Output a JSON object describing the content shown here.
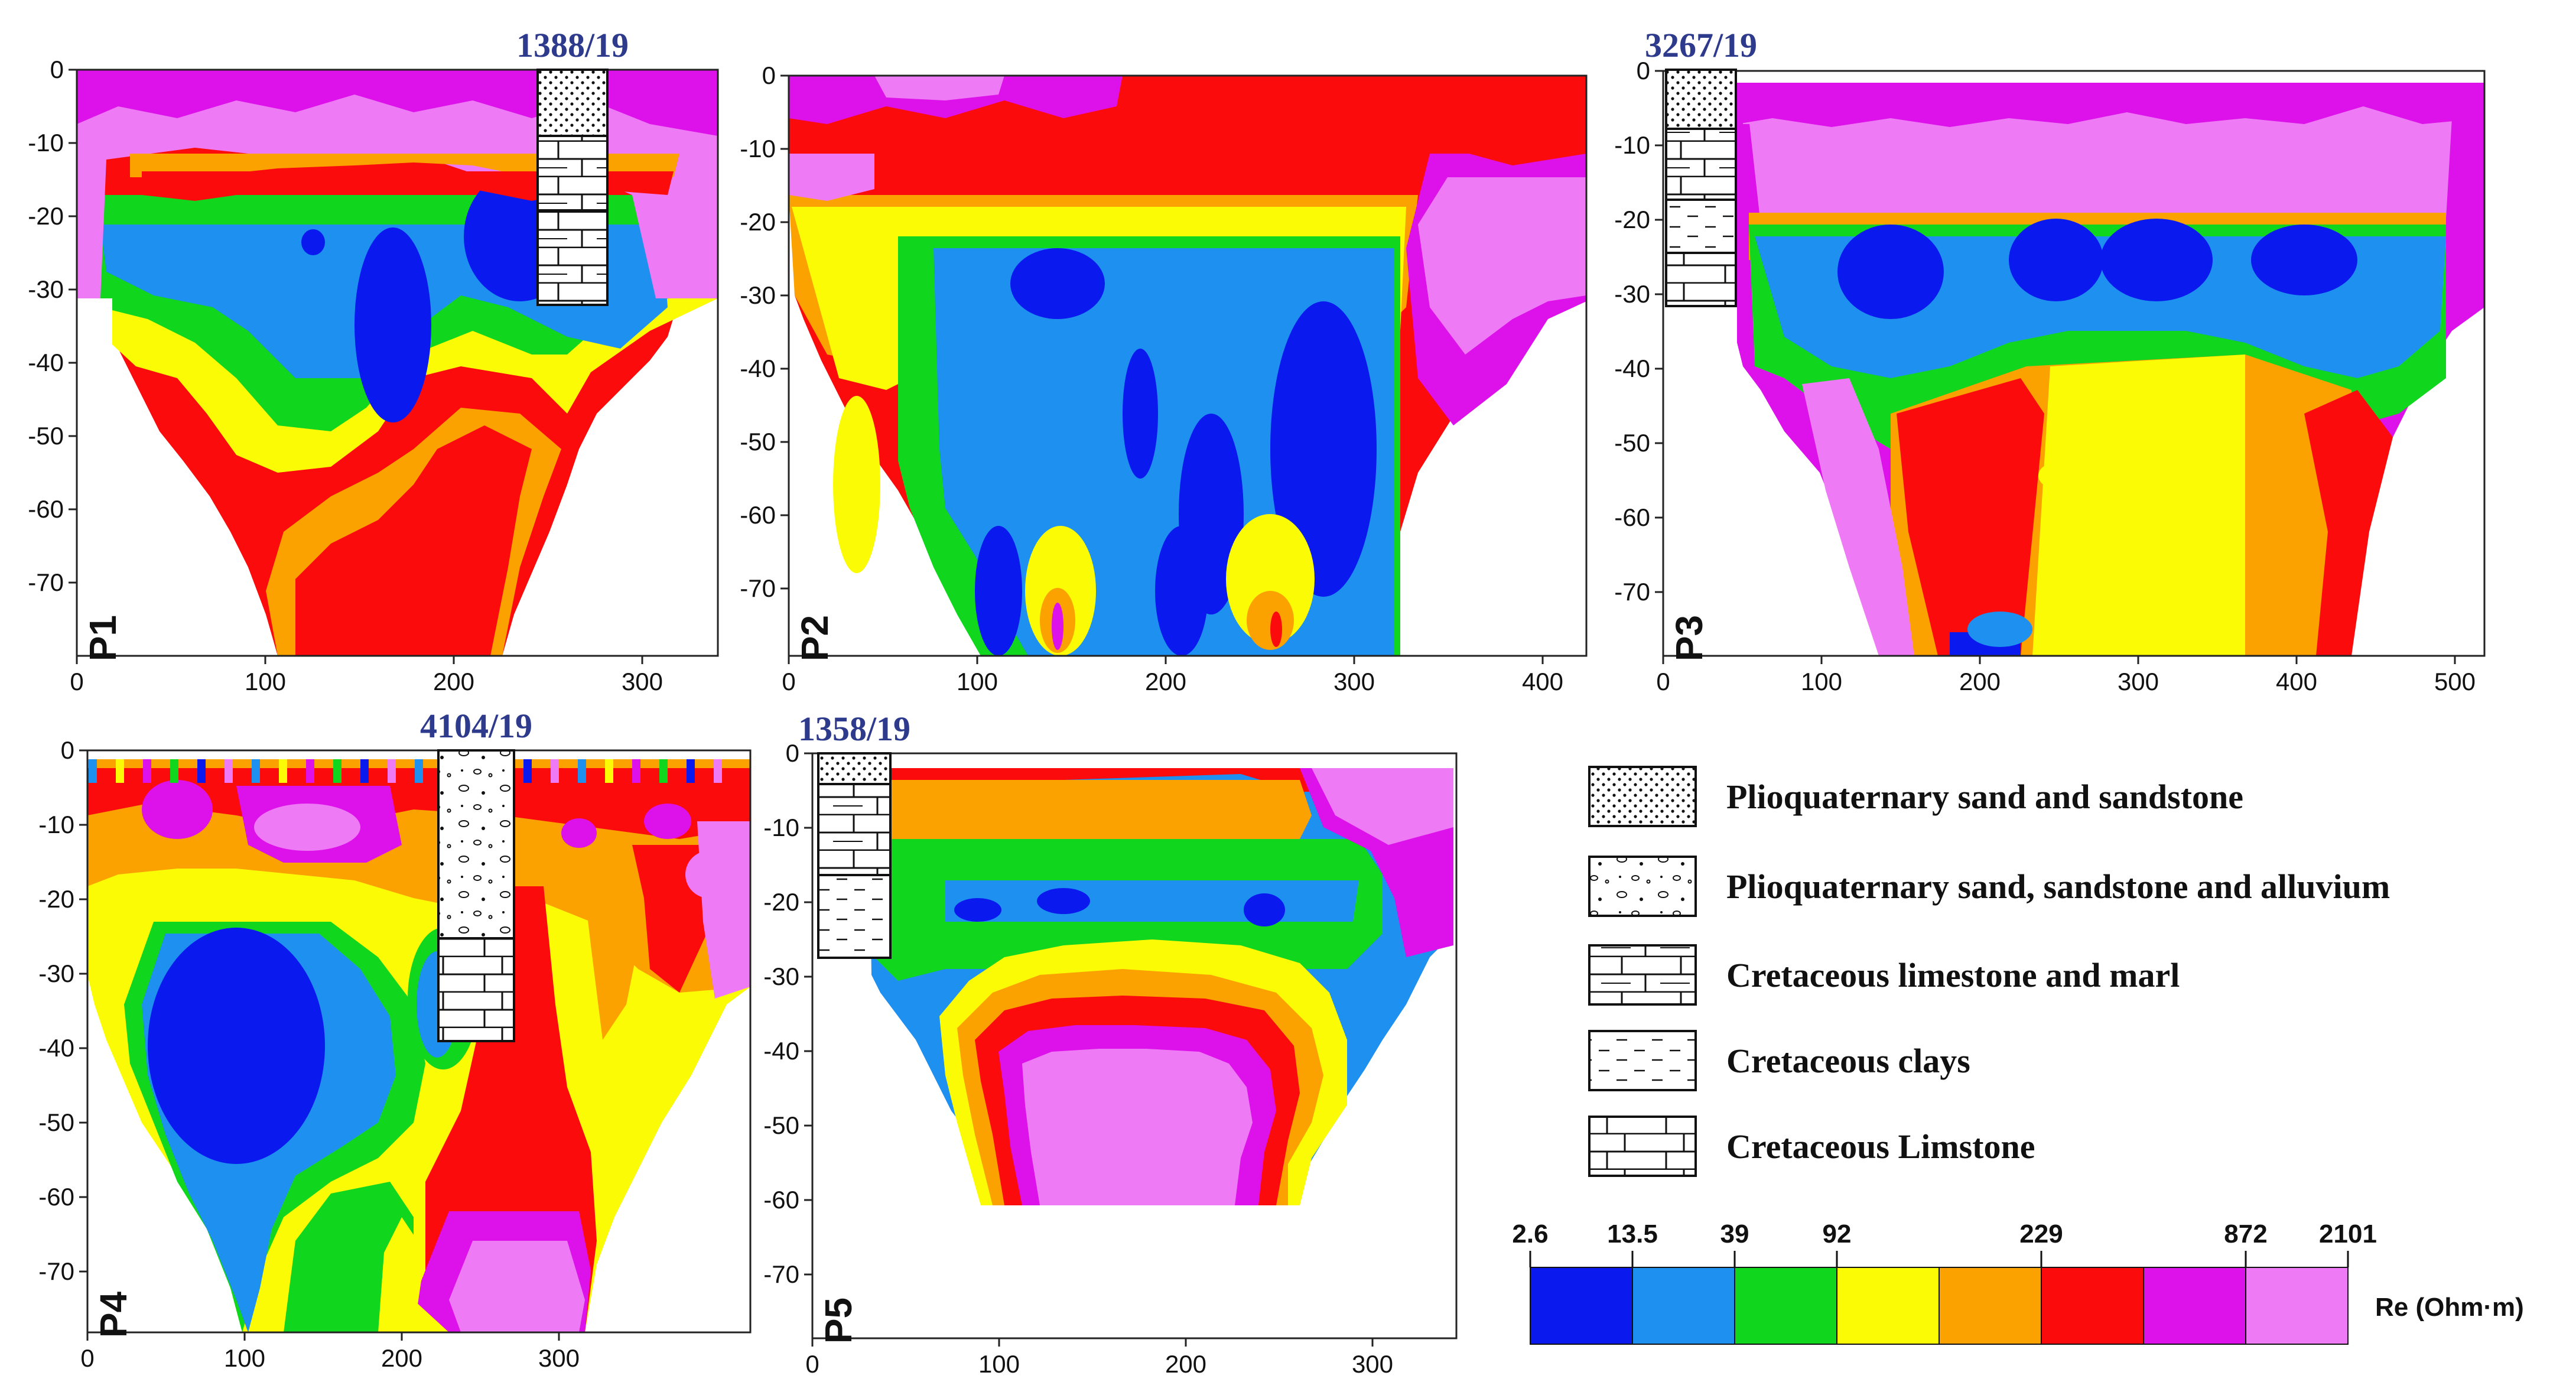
{
  "chart_data": [
    {
      "type": "heatmap",
      "label": "P1",
      "well": "1388/19",
      "x_ticks": [
        0,
        100,
        200,
        300
      ],
      "y_ticks": [
        0,
        -10,
        -20,
        -30,
        -40,
        -50,
        -60,
        -70
      ],
      "xlim": [
        0,
        340
      ],
      "ylim": [
        -80,
        0
      ]
    },
    {
      "type": "heatmap",
      "label": "P2",
      "x_ticks": [
        0,
        100,
        200,
        300,
        400
      ],
      "y_ticks": [
        0,
        -10,
        -20,
        -30,
        -40,
        -50,
        -60,
        -70
      ],
      "xlim": [
        0,
        420
      ],
      "ylim": [
        -80,
        0
      ]
    },
    {
      "type": "heatmap",
      "label": "P3",
      "well": "3267/19",
      "x_ticks": [
        0,
        100,
        200,
        300,
        400,
        500
      ],
      "y_ticks": [
        0,
        -10,
        -20,
        -30,
        -40,
        -50,
        -60,
        -70
      ],
      "xlim": [
        0,
        515
      ],
      "ylim": [
        -80,
        0
      ]
    },
    {
      "type": "heatmap",
      "label": "P4",
      "well": "4104/19",
      "x_ticks": [
        0,
        100,
        200,
        300
      ],
      "y_ticks": [
        0,
        -10,
        -20,
        -30,
        -40,
        -50,
        -60,
        -70
      ],
      "xlim": [
        0,
        425
      ],
      "ylim": [
        -78,
        0
      ]
    },
    {
      "type": "heatmap",
      "label": "P5",
      "well": "1358/19",
      "x_ticks": [
        0,
        100,
        200,
        300
      ],
      "y_ticks": [
        0,
        -10,
        -20,
        -30,
        -40,
        -50,
        -60,
        -70
      ],
      "xlim": [
        0,
        345
      ],
      "ylim": [
        -80,
        0
      ]
    }
  ],
  "colorbar": {
    "title": "Re (Ohm·m)",
    "ticks": [
      "2.6",
      "13.5",
      "39",
      "92",
      "229",
      "872",
      "2101"
    ],
    "colors": [
      "#0a1aef",
      "#1e90f0",
      "#11d61e",
      "#fbfb05",
      "#fba100",
      "#fb0b0b",
      "#dd11e9",
      "#ee7bf5"
    ]
  },
  "legend": [
    {
      "label": "Plioquaternary sand and sandstone",
      "pattern": "dots"
    },
    {
      "label": "Plioquaternary sand, sandstone and  alluvium",
      "pattern": "pebbles"
    },
    {
      "label": "Cretaceous limestone and marl",
      "pattern": "limestone-marl"
    },
    {
      "label": "Cretaceous clays",
      "pattern": "dashes"
    },
    {
      "label": "Cretaceous Limstone",
      "pattern": "bricks"
    }
  ]
}
